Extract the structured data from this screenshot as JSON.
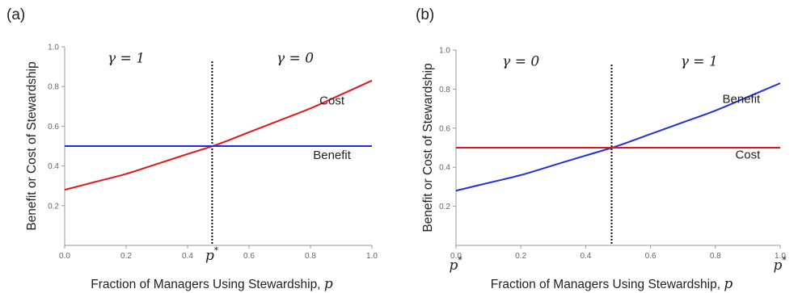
{
  "chart_data": [
    {
      "type": "line",
      "panel_label": "(a)",
      "xlabel": "Fraction of Managers Using Stewardship,",
      "xlabel_var": "p",
      "ylabel": "Benefit or Cost of Stewardship",
      "xlim": [
        0,
        1
      ],
      "ylim": [
        0,
        1
      ],
      "x_ticks": [
        "0.0",
        "0.2",
        "0.4",
        "0.6",
        "0.8",
        "1.0"
      ],
      "x_tick_values": [
        0,
        0.2,
        0.4,
        0.6,
        0.8,
        1.0
      ],
      "y_ticks": [
        "0.2",
        "0.4",
        "0.6",
        "0.8",
        "1.0"
      ],
      "y_tick_values": [
        0.2,
        0.4,
        0.6,
        0.8,
        1.0
      ],
      "threshold_x": 0.48,
      "threshold_labels": [
        {
          "text": "p",
          "sup": "*",
          "at": "bottom"
        }
      ],
      "region_labels": [
        {
          "text": "γ = 1",
          "x": 0.2,
          "y": 0.92
        },
        {
          "text": "γ = 0",
          "x": 0.75,
          "y": 0.92
        }
      ],
      "series": [
        {
          "name": "Cost",
          "color": "#e8141c",
          "x": [
            0,
            0.1,
            0.2,
            0.3,
            0.4,
            0.5,
            0.6,
            0.7,
            0.8,
            0.9,
            1.0
          ],
          "y": [
            0.28,
            0.32,
            0.36,
            0.41,
            0.46,
            0.51,
            0.57,
            0.63,
            0.69,
            0.76,
            0.83
          ],
          "label_x": 0.87,
          "label_y": 0.71
        },
        {
          "name": "Benefit",
          "color": "#1f2ee0",
          "x": [
            0,
            1.0
          ],
          "y": [
            0.5,
            0.5
          ],
          "label_x": 0.87,
          "label_y": 0.435
        }
      ]
    },
    {
      "type": "line",
      "panel_label": "(b)",
      "xlabel": "Fraction of Managers Using Stewardship,",
      "xlabel_var": "p",
      "ylabel": "Benefit or Cost of Stewardship",
      "xlim": [
        0,
        1
      ],
      "ylim": [
        0,
        1
      ],
      "x_ticks": [
        "0.0",
        "0.2",
        "0.4",
        "0.6",
        "0.8",
        "1.0"
      ],
      "x_tick_values": [
        0,
        0.2,
        0.4,
        0.6,
        0.8,
        1.0
      ],
      "y_ticks": [
        "0.2",
        "0.4",
        "0.6",
        "0.8",
        "1.0"
      ],
      "y_tick_values": [
        0.2,
        0.4,
        0.6,
        0.8,
        1.0
      ],
      "threshold_x": 0.48,
      "threshold_labels": [
        {
          "text": "p",
          "sup": "*",
          "at": "left"
        },
        {
          "text": "p",
          "sup": "*",
          "at": "right"
        }
      ],
      "region_labels": [
        {
          "text": "γ = 0",
          "x": 0.2,
          "y": 0.92
        },
        {
          "text": "γ = 1",
          "x": 0.75,
          "y": 0.92
        }
      ],
      "series": [
        {
          "name": "Benefit",
          "color": "#1f2ee0",
          "x": [
            0,
            0.1,
            0.2,
            0.3,
            0.4,
            0.5,
            0.6,
            0.7,
            0.8,
            0.9,
            1.0
          ],
          "y": [
            0.28,
            0.32,
            0.36,
            0.41,
            0.46,
            0.51,
            0.57,
            0.63,
            0.69,
            0.76,
            0.83
          ],
          "label_x": 0.88,
          "label_y": 0.73
        },
        {
          "name": "Cost",
          "color": "#e8141c",
          "x": [
            0,
            1.0
          ],
          "y": [
            0.5,
            0.5
          ],
          "label_x": 0.9,
          "label_y": 0.445
        }
      ]
    }
  ]
}
